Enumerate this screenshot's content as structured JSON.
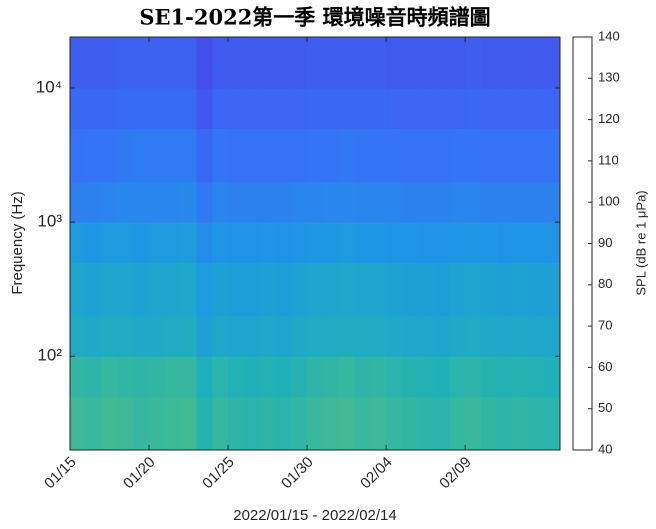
{
  "chart_data": {
    "type": "heatmap",
    "title": "SE1-2022第一季   環境噪音時頻譜圖",
    "xlabel": "2022/01/15 - 2022/02/14",
    "ylabel": "Frequency (Hz)",
    "yscale": "log",
    "xlim": [
      0,
      31
    ],
    "xticks": [
      {
        "value": 0,
        "label": "01/15"
      },
      {
        "value": 5,
        "label": "01/20"
      },
      {
        "value": 10,
        "label": "01/25"
      },
      {
        "value": 15,
        "label": "01/30"
      },
      {
        "value": 20,
        "label": "02/04"
      },
      {
        "value": 25,
        "label": "02/09"
      }
    ],
    "ylim": [
      20,
      24000
    ],
    "yticks": [
      {
        "value": 100,
        "label": "10²"
      },
      {
        "value": 1000,
        "label": "10³"
      },
      {
        "value": 10000,
        "label": "10⁴"
      }
    ],
    "x_bins": [
      0,
      1,
      2,
      3,
      4,
      5,
      6,
      7,
      8,
      9,
      10,
      11,
      12,
      13,
      14,
      15,
      16,
      17,
      18,
      19,
      20,
      21,
      22,
      23,
      24,
      25,
      26,
      27,
      28,
      29,
      30,
      31
    ],
    "y_bins": [
      20,
      50,
      100,
      200,
      500,
      1000,
      2000,
      5000,
      10000,
      24000
    ],
    "z": [
      [
        98,
        97,
        99,
        98,
        96,
        97,
        98,
        99,
        92,
        96,
        94,
        93,
        94,
        93,
        95,
        97,
        98,
        99,
        97,
        98,
        96,
        95,
        94,
        93,
        96,
        97,
        95,
        94,
        95,
        94,
        93
      ],
      [
        95,
        94,
        96,
        95,
        94,
        95,
        96,
        96,
        89,
        93,
        91,
        90,
        91,
        90,
        92,
        94,
        95,
        96,
        94,
        95,
        93,
        92,
        91,
        90,
        93,
        94,
        92,
        91,
        92,
        91,
        90
      ],
      [
        87,
        86,
        87,
        87,
        86,
        86,
        87,
        88,
        82,
        85,
        84,
        84,
        85,
        84,
        86,
        87,
        87,
        88,
        87,
        87,
        86,
        85,
        85,
        84,
        86,
        87,
        86,
        85,
        86,
        85,
        85
      ],
      [
        84,
        83,
        84,
        84,
        83,
        84,
        84,
        85,
        79,
        82,
        81,
        81,
        82,
        81,
        83,
        84,
        84,
        85,
        84,
        84,
        83,
        82,
        82,
        81,
        83,
        84,
        83,
        82,
        83,
        82,
        82
      ],
      [
        79,
        78,
        79,
        79,
        78,
        79,
        79,
        80,
        74,
        77,
        76,
        76,
        77,
        76,
        77,
        78,
        78,
        79,
        78,
        78,
        77,
        77,
        76,
        76,
        77,
        78,
        77,
        76,
        77,
        77,
        76
      ],
      [
        70,
        70,
        71,
        72,
        72,
        72,
        72,
        73,
        67,
        71,
        70,
        70,
        70,
        70,
        71,
        71,
        72,
        72,
        71,
        71,
        71,
        70,
        70,
        70,
        71,
        71,
        70,
        70,
        70,
        70,
        70
      ],
      [
        65,
        66,
        66,
        67,
        68,
        68,
        68,
        68,
        62,
        66,
        65,
        65,
        65,
        65,
        65,
        66,
        66,
        67,
        66,
        66,
        66,
        65,
        65,
        65,
        66,
        66,
        65,
        65,
        65,
        65,
        65
      ],
      [
        62,
        62,
        62,
        63,
        63,
        63,
        63,
        63,
        57,
        61,
        61,
        61,
        61,
        61,
        61,
        62,
        62,
        62,
        62,
        62,
        61,
        61,
        61,
        61,
        61,
        62,
        61,
        61,
        61,
        61,
        61
      ],
      [
        59,
        59,
        59,
        60,
        60,
        60,
        60,
        60,
        54,
        58,
        58,
        58,
        58,
        58,
        58,
        59,
        59,
        59,
        59,
        59,
        58,
        58,
        58,
        58,
        58,
        59,
        58,
        58,
        58,
        58,
        58
      ]
    ],
    "colormap": "parula",
    "colorbar": {
      "label": "SPL (dB re 1 μPa)",
      "lim": [
        40,
        140
      ],
      "ticks": [
        40,
        50,
        60,
        70,
        80,
        90,
        100,
        110,
        120,
        130,
        140
      ]
    }
  }
}
